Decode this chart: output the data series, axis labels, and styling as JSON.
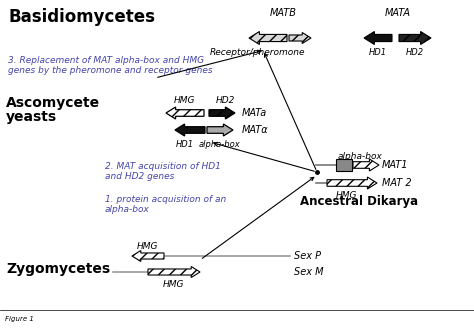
{
  "bg_color": "#ffffff",
  "purple_color": "#4444aa",
  "labels": {
    "basidiomycetes": "Basidiomycetes",
    "ascomycete": "Ascomycete",
    "yeasts": "yeasts",
    "zygomycetes": "Zygomycetes",
    "ancestral": "Ancestral Dikarya",
    "MATB": "MATB",
    "MATA": "MATA",
    "receptor_pheromone": "Receptor/pheromone",
    "HD1_bas": "HD1",
    "HD2_bas": "HD2",
    "HMG_asco": "HMG",
    "HD2_asco": "HD2",
    "MATa": "MATa",
    "MAT_alpha": "MATα",
    "HD1_asco": "HD1",
    "alphabox_asco": "alpha-box",
    "alphabox_anc": "alpha-box",
    "MAT1": "MAT1",
    "MAT2": "MAT 2",
    "HMG_anc": "HMG",
    "HMG_zyg1": "HMG",
    "HMG_zyg2": "HMG",
    "SexP": "Sex P",
    "SexM": "Sex M",
    "step3": "3. Replacement of MAT alpha-box and HMG\ngenes by the pheromone and receptor genes",
    "step2": "2. MAT acquisition of HD1\nand HD2 genes",
    "step1": "1. protein acquisition of an\nalpha-box"
  }
}
